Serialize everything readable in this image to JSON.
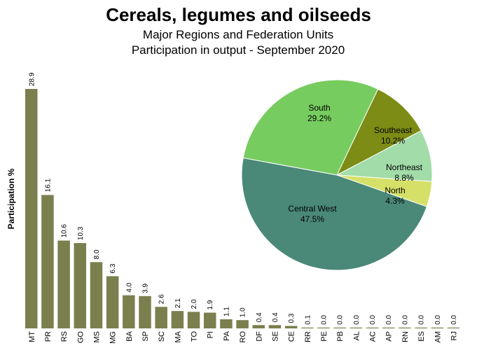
{
  "header": {
    "title": "Cereals, legumes and oilseeds",
    "subtitle_line1": "Major Regions and Federation Units",
    "subtitle_line2": "Participation in output - September 2020"
  },
  "chart_data": [
    {
      "type": "bar",
      "ylabel": "Participation %",
      "ylim": [
        0,
        28.9
      ],
      "bar_color": "#7b7f4e",
      "categories": [
        "MT",
        "PR",
        "RS",
        "GO",
        "MS",
        "MG",
        "BA",
        "SP",
        "SC",
        "MA",
        "TO",
        "PI",
        "PA",
        "RO",
        "DF",
        "SE",
        "CE",
        "RR",
        "PE",
        "PB",
        "AL",
        "AC",
        "AP",
        "RN",
        "ES",
        "AM",
        "RJ"
      ],
      "values": [
        28.9,
        16.1,
        10.6,
        10.3,
        8.0,
        6.3,
        4.0,
        3.9,
        2.6,
        2.1,
        2.0,
        1.9,
        1.1,
        1.0,
        0.4,
        0.4,
        0.3,
        0.1,
        0.0,
        0.0,
        0.0,
        0.0,
        0.0,
        0.0,
        0.0,
        0.0,
        0.0
      ],
      "value_labels": [
        "28.9",
        "16.1",
        "10.6",
        "10.3",
        "8.0",
        "6.3",
        "4.0",
        "3.9",
        "2.6",
        "2.1",
        "2.0",
        "1.9",
        "1.1",
        "1.0",
        "0.4",
        "0.4",
        "0.3",
        "0.1",
        "0.0",
        "0.0",
        "0.0",
        "0.0",
        "0.0",
        "0.0",
        "0.0",
        "0.0",
        "0.0"
      ]
    },
    {
      "type": "pie",
      "slices": [
        {
          "name": "Southeast",
          "value": 10.2,
          "label": "10.2%",
          "color": "#7c8c14"
        },
        {
          "name": "Northeast",
          "value": 8.8,
          "label": "8.8%",
          "color": "#a2dca8"
        },
        {
          "name": "North",
          "value": 4.3,
          "label": "4.3%",
          "color": "#d5e068"
        },
        {
          "name": "Central West",
          "value": 47.5,
          "label": "47.5%",
          "color": "#4a8878"
        },
        {
          "name": "South",
          "value": 29.2,
          "label": "29.2%",
          "color": "#77cc60"
        }
      ]
    }
  ]
}
